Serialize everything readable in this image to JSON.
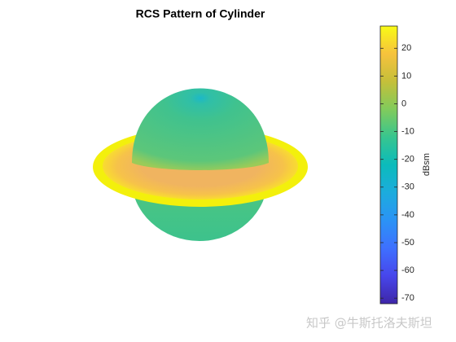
{
  "chart_data": {
    "type": "surface",
    "title": "RCS Pattern of Cylinder",
    "colorbar": {
      "label": "dBsm",
      "lim": [
        -72,
        28
      ],
      "ticks": [
        -70,
        -60,
        -50,
        -40,
        -30,
        -20,
        -10,
        0,
        10,
        20
      ],
      "colors": [
        "#3e26a8",
        "#4746eb",
        "#3e70ff",
        "#2b93f5",
        "#1cacdd",
        "#0bbbbb",
        "#37c58f",
        "#81cb5c",
        "#c5bf3a",
        "#f6c23d",
        "#f9fb15"
      ]
    },
    "watermark": "知乎 @牛斯托洛夫斯坦"
  }
}
